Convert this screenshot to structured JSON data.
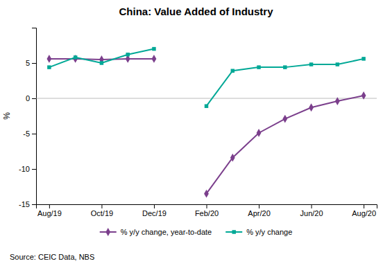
{
  "chart_data": {
    "type": "line",
    "title": "China: Value Added of Industry",
    "ylabel": "%",
    "annotations": [
      "Source: CEIC Data, NBS"
    ],
    "categories": [
      "Aug/19",
      null,
      "Oct/19",
      null,
      "Dec/19",
      null,
      "Feb/20",
      null,
      "Apr/20",
      null,
      "Jun/20",
      null,
      "Aug/20"
    ],
    "series": [
      {
        "name": "% y/y change, year-to-date",
        "color": "#7B3F8C",
        "marker": "diamond",
        "values": [
          5.6,
          5.6,
          5.5,
          5.6,
          5.6,
          null,
          -13.5,
          -8.4,
          -4.9,
          -2.9,
          -1.3,
          -0.4,
          0.4
        ]
      },
      {
        "name": "% y/y change",
        "color": "#00A896",
        "marker": "square",
        "values": [
          4.4,
          5.8,
          5.0,
          6.2,
          7.0,
          null,
          -1.1,
          3.9,
          4.4,
          4.4,
          4.8,
          4.8,
          5.6
        ]
      }
    ],
    "ylim": [
      -15,
      10
    ],
    "yticks": [
      -15,
      -10,
      -5,
      0,
      5
    ],
    "grid": false,
    "legend": "bottom"
  }
}
